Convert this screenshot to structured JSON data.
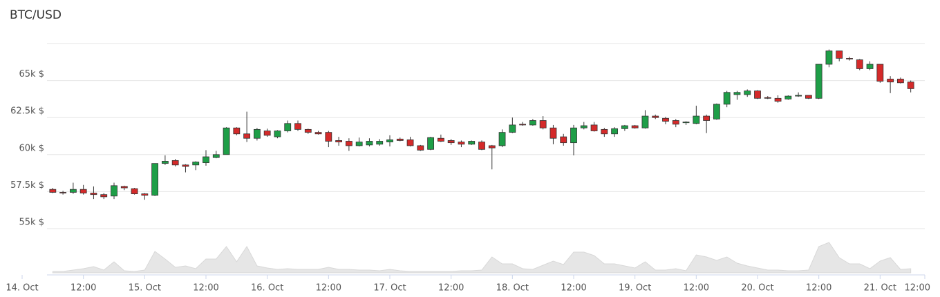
{
  "chart_data": {
    "type": "candlestick",
    "title": "BTC/USD",
    "x": [
      6,
      8,
      10,
      12,
      14,
      16,
      18,
      20,
      22,
      24,
      26,
      28,
      30,
      32,
      34,
      36,
      38,
      40,
      42,
      44,
      46,
      48,
      50,
      52,
      54,
      56,
      58,
      60,
      62,
      64,
      66,
      68,
      70,
      72,
      74,
      76,
      78,
      80,
      82,
      84,
      86,
      88,
      90,
      92,
      94,
      96,
      98,
      100,
      102,
      104,
      106,
      108,
      110,
      112,
      114,
      116,
      118,
      120,
      122,
      124,
      126,
      128,
      130,
      132,
      134,
      136,
      138,
      140,
      142,
      144,
      146,
      148,
      150,
      152,
      154,
      156,
      158,
      160,
      162,
      164,
      166,
      168,
      170,
      172,
      174
    ],
    "open": [
      57650,
      57450,
      57450,
      57650,
      57400,
      57300,
      57200,
      57850,
      57700,
      57350,
      57250,
      59400,
      59600,
      59300,
      59300,
      59450,
      59800,
      60000,
      61800,
      61400,
      61100,
      61600,
      61200,
      61600,
      62100,
      61700,
      61500,
      61500,
      60950,
      60900,
      60600,
      60650,
      60700,
      60850,
      61050,
      61000,
      60600,
      60350,
      61100,
      60950,
      60850,
      60700,
      60850,
      60600,
      60600,
      61500,
      62050,
      62000,
      62300,
      61800,
      61200,
      60800,
      61800,
      62000,
      61700,
      61400,
      61750,
      61950,
      61800,
      62600,
      62450,
      62300,
      62150,
      62100,
      62600,
      62400,
      63400,
      64050,
      64050,
      64300,
      63850,
      63800,
      63750,
      63950,
      64000,
      63800,
      66100,
      67000,
      66500,
      66400,
      65800,
      66100,
      65100,
      65100,
      64900
    ],
    "high": [
      57750,
      57550,
      58100,
      57950,
      57850,
      57400,
      58100,
      57900,
      57750,
      57400,
      59400,
      59950,
      59700,
      59350,
      59550,
      60300,
      60250,
      61850,
      61850,
      62900,
      61800,
      61750,
      61650,
      62300,
      62300,
      61750,
      61600,
      61600,
      61200,
      61100,
      61150,
      61100,
      61050,
      61300,
      61150,
      61200,
      60650,
      61200,
      61350,
      61050,
      60950,
      60950,
      60950,
      60650,
      61700,
      62500,
      62200,
      62400,
      62600,
      62000,
      61400,
      62000,
      62200,
      62200,
      61800,
      61850,
      62000,
      62000,
      63000,
      62700,
      62550,
      62400,
      62250,
      63300,
      62700,
      63450,
      64300,
      64300,
      64400,
      64350,
      63950,
      64000,
      64000,
      64200,
      64000,
      66100,
      67100,
      67000,
      66600,
      66450,
      66300,
      66100,
      65300,
      65200,
      65000
    ],
    "low": [
      57400,
      57300,
      57350,
      57300,
      57000,
      57000,
      57000,
      57600,
      57300,
      56950,
      57200,
      59300,
      59200,
      58800,
      58950,
      59250,
      59750,
      60000,
      61300,
      60850,
      60950,
      61200,
      61100,
      61500,
      61600,
      61400,
      61350,
      60500,
      60600,
      60250,
      60550,
      60550,
      60600,
      60550,
      60900,
      60550,
      60250,
      60300,
      60850,
      60650,
      60500,
      60650,
      60300,
      59000,
      60500,
      61450,
      61950,
      61950,
      61700,
      60700,
      60600,
      59950,
      61700,
      61550,
      61200,
      61200,
      61600,
      61750,
      61750,
      62400,
      62050,
      61850,
      62000,
      62050,
      61450,
      62350,
      63200,
      63700,
      63900,
      63750,
      63750,
      63500,
      63700,
      63900,
      63750,
      63750,
      65900,
      66300,
      66350,
      65700,
      65700,
      64850,
      64150,
      64800,
      64200
    ],
    "close": [
      57450,
      57400,
      57650,
      57400,
      57300,
      57150,
      57900,
      57750,
      57350,
      57250,
      59400,
      59550,
      59300,
      59200,
      59500,
      59850,
      60000,
      61800,
      61400,
      61100,
      61700,
      61300,
      61600,
      62100,
      61700,
      61500,
      61400,
      60900,
      60850,
      60600,
      60850,
      60900,
      60900,
      61000,
      60950,
      60600,
      60300,
      61150,
      60900,
      60800,
      60700,
      60900,
      60350,
      60450,
      61500,
      62000,
      62000,
      62300,
      61800,
      61100,
      60800,
      61800,
      61950,
      61600,
      61400,
      61750,
      61950,
      61800,
      62600,
      62500,
      62250,
      62050,
      62200,
      62600,
      62300,
      63400,
      64200,
      64200,
      64300,
      63800,
      63800,
      63600,
      63950,
      64000,
      63800,
      66100,
      67000,
      66500,
      66450,
      65800,
      66100,
      64950,
      64900,
      64850,
      64450
    ],
    "volume": [
      4,
      4,
      8,
      12,
      18,
      8,
      32,
      6,
      4,
      8,
      62,
      40,
      16,
      20,
      12,
      40,
      40,
      76,
      32,
      76,
      20,
      14,
      10,
      12,
      10,
      10,
      10,
      16,
      10,
      10,
      8,
      8,
      6,
      10,
      6,
      4,
      4,
      4,
      4,
      4,
      6,
      6,
      8,
      46,
      26,
      26,
      12,
      10,
      22,
      34,
      24,
      60,
      60,
      50,
      26,
      26,
      20,
      14,
      32,
      8,
      8,
      12,
      6,
      52,
      46,
      36,
      46,
      28,
      20,
      14,
      8,
      8,
      6,
      6,
      8,
      76,
      88,
      44,
      26,
      26,
      12,
      34,
      44,
      10,
      12
    ],
    "up_color": "#1e9e47",
    "down_color": "#d42a2a",
    "volume_color": "#e6e6e6",
    "ylim": [
      55000,
      67500
    ],
    "yticks": [
      {
        "value": 55000,
        "label": "55k $"
      },
      {
        "value": 57500,
        "label": "57.5k $"
      },
      {
        "value": 60000,
        "label": "60k $"
      },
      {
        "value": 62500,
        "label": "62.5k $"
      },
      {
        "value": 65000,
        "label": "65k $"
      }
    ],
    "xlim": [
      0,
      180
    ],
    "xticks": [
      {
        "value": 0,
        "label": "14. Oct"
      },
      {
        "value": 12,
        "label": "12:00"
      },
      {
        "value": 24,
        "label": "15. Oct"
      },
      {
        "value": 36,
        "label": "12:00"
      },
      {
        "value": 48,
        "label": "16. Oct"
      },
      {
        "value": 60,
        "label": "12:00"
      },
      {
        "value": 72,
        "label": "17. Oct"
      },
      {
        "value": 84,
        "label": "12:00"
      },
      {
        "value": 96,
        "label": "18. Oct"
      },
      {
        "value": 108,
        "label": "12:00"
      },
      {
        "value": 120,
        "label": "19. Oct"
      },
      {
        "value": 132,
        "label": "12:00"
      },
      {
        "value": 144,
        "label": "20. Oct"
      },
      {
        "value": 156,
        "label": "12:00"
      },
      {
        "value": 168,
        "label": "21. Oct"
      },
      {
        "value": 180,
        "label": "12:00"
      }
    ],
    "volume_ylim": [
      0,
      100
    ],
    "grid": true
  }
}
